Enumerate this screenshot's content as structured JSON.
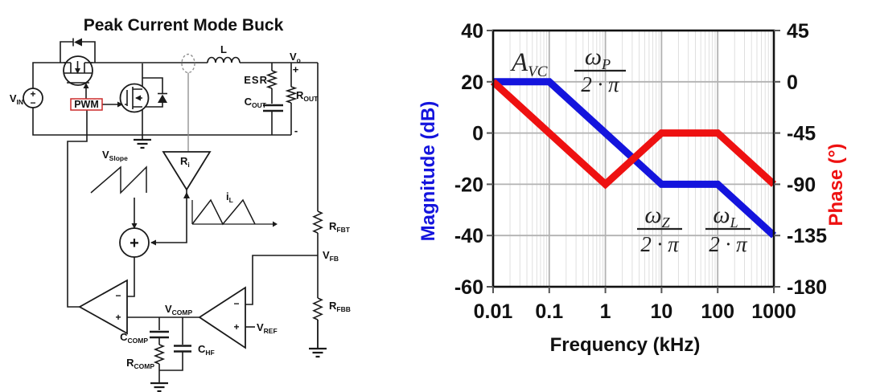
{
  "left_panel": {
    "title": "Peak Current Mode Buck",
    "pwm_box_color": "#cc2b2b",
    "labels": {
      "vin": {
        "main": "V",
        "sub": "IN"
      },
      "vin_plus": "+",
      "vin_minus": "−",
      "pwm": "PWM",
      "inductor": "L",
      "vo": {
        "main": "V",
        "sub": "o"
      },
      "vo_plus": "+",
      "vo_minus": "-",
      "esr": "ESR",
      "cout": {
        "main": "C",
        "sub": "OUT"
      },
      "rout": {
        "main": "R",
        "sub": "OUT"
      },
      "vslope": {
        "main": "V",
        "sub": "Slope"
      },
      "ri": {
        "main": "R",
        "sub": "i"
      },
      "il": {
        "main": "i",
        "sub": "L"
      },
      "rfbt": {
        "main": "R",
        "sub": "FBT"
      },
      "vfb": {
        "main": "V",
        "sub": "FB"
      },
      "rfbb": {
        "main": "R",
        "sub": "FBB"
      },
      "vcomp": {
        "main": "V",
        "sub": "COMP"
      },
      "vref": {
        "main": "V",
        "sub": "REF"
      },
      "ccomp": {
        "main": "C",
        "sub": "COMP"
      },
      "rcomp": {
        "main": "R",
        "sub": "COMP"
      },
      "chf": {
        "main": "C",
        "sub": "HF"
      },
      "sum_plus": "+",
      "comp_minus": "−",
      "comp_plus": "+",
      "ea_minus": "−",
      "ea_plus": "+"
    }
  },
  "chart_data": {
    "type": "line",
    "xlabel": "Frequency (kHz)",
    "x_scale": "log",
    "x_ticks": [
      0.01,
      0.1,
      1,
      10,
      100,
      1000
    ],
    "x_tick_labels": [
      "0.01",
      "0.1",
      "1",
      "10",
      "100",
      "1000"
    ],
    "grid": {
      "major": true,
      "minor_vertical_log": true
    },
    "left_axis": {
      "label": "Magnitude (dB)",
      "color": "#1414dd",
      "range": [
        -60,
        40
      ],
      "ticks": [
        40,
        20,
        0,
        -20,
        -40,
        -60
      ],
      "tick_labels": [
        "40",
        "20",
        "0",
        "-20",
        "-40",
        "-60"
      ]
    },
    "right_axis": {
      "label": "Phase (°)",
      "color": "#ee1111",
      "range": [
        -180,
        45
      ],
      "ticks": [
        45,
        0,
        -45,
        -90,
        -135,
        -180
      ],
      "tick_labels": [
        "45",
        "0",
        "-45",
        "-90",
        "-135",
        "-180"
      ]
    },
    "series": [
      {
        "name": "magnitude",
        "axis": "left",
        "color": "#1414dd",
        "x": [
          0.01,
          0.1,
          10,
          100,
          1000
        ],
        "y": [
          20,
          20,
          -20,
          -20,
          -40
        ]
      },
      {
        "name": "phase",
        "axis": "right",
        "color": "#ee1111",
        "x": [
          0.01,
          1,
          10,
          100,
          1000
        ],
        "y": [
          0,
          -90,
          -45,
          -45,
          -90
        ]
      }
    ],
    "annotations": {
      "gain": {
        "main": "A",
        "sub": "VC"
      },
      "pole": {
        "num": "ω",
        "num_sub": "P",
        "den": "2 · π"
      },
      "zero": {
        "num": "ω",
        "num_sub": "Z",
        "den": "2 · π"
      },
      "ind_pole": {
        "num": "ω",
        "num_sub": "L",
        "den": "2 · π"
      }
    }
  }
}
